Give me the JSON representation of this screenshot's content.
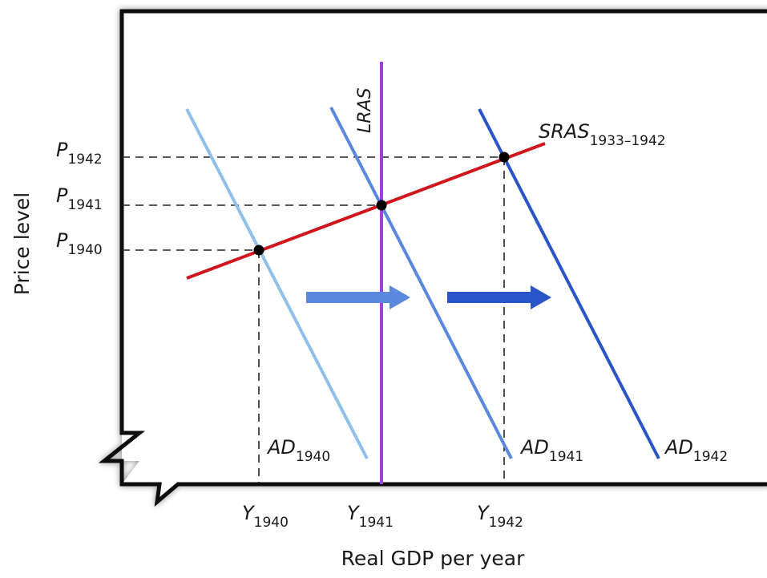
{
  "chart_data": {
    "type": "line",
    "xlabel": "Real GDP per year",
    "ylabel": "Price level",
    "curves": {
      "lras": {
        "label": "LRAS",
        "color": "#a040e0"
      },
      "sras": {
        "label": "SRAS",
        "sub": "1933–1942",
        "color": "#d0151c"
      },
      "ad1940": {
        "label": "AD",
        "sub": "1940",
        "color": "#8fc0ec"
      },
      "ad1941": {
        "label": "AD",
        "sub": "1941",
        "color": "#5b88df"
      },
      "ad1942": {
        "label": "AD",
        "sub": "1942",
        "color": "#2a55c8"
      }
    },
    "price_levels": [
      {
        "label": "P",
        "sub": "1940"
      },
      {
        "label": "P",
        "sub": "1941"
      },
      {
        "label": "P",
        "sub": "1942"
      }
    ],
    "output_levels": [
      {
        "label": "Y",
        "sub": "1940"
      },
      {
        "label": "Y",
        "sub": "1941"
      },
      {
        "label": "Y",
        "sub": "1942"
      }
    ],
    "equilibria": [
      "1940",
      "1941",
      "1942"
    ],
    "shift_arrows": [
      {
        "from": "AD1940",
        "to": "AD1941",
        "color": "#5b88df"
      },
      {
        "from": "AD1941",
        "to": "AD1942",
        "color": "#2a55c8"
      }
    ]
  }
}
